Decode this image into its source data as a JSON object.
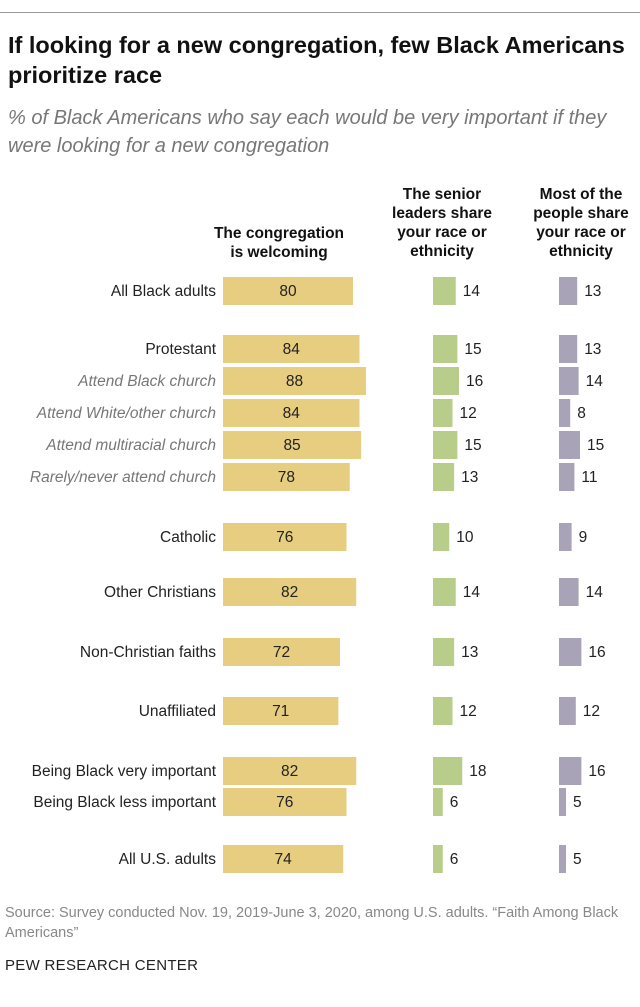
{
  "title": "If looking for a new congregation, few Black Americans prioritize race",
  "subtitle": "% of Black Americans who say each would be very important if they were looking for a new congregation",
  "colors": {
    "welcoming": "#e6cd7f",
    "leaders": "#b8cd89",
    "people": "#a8a3b6"
  },
  "chart_data": {
    "type": "bar",
    "orientation": "horizontal",
    "categories": [
      "All Black adults",
      "Protestant",
      "Attend Black church",
      "Attend White/other church",
      "Attend multiracial church",
      "Rarely/never attend church",
      "Catholic",
      "Other Christians",
      "Non-Christian faiths",
      "Unaffiliated",
      "Being Black very important",
      "Being Black less important",
      "All U.S. adults"
    ],
    "subgroup_flags": [
      false,
      false,
      true,
      true,
      true,
      true,
      false,
      false,
      false,
      false,
      false,
      false,
      false
    ],
    "series": [
      {
        "name": "The congregation is welcoming",
        "values": [
          80,
          84,
          88,
          84,
          85,
          78,
          76,
          82,
          72,
          71,
          82,
          76,
          74
        ]
      },
      {
        "name": "The senior leaders share your race or ethnicity",
        "values": [
          14,
          15,
          16,
          12,
          15,
          13,
          10,
          14,
          13,
          12,
          18,
          6,
          6
        ]
      },
      {
        "name": "Most of the people share your race or ethnicity",
        "values": [
          13,
          13,
          14,
          8,
          15,
          11,
          9,
          14,
          16,
          12,
          16,
          5,
          5
        ]
      }
    ],
    "unit": "%"
  },
  "source": "Source: Survey conducted Nov. 19, 2019-June 3, 2020, among U.S. adults. “Faith Among Black Americans”",
  "brand": "PEW RESEARCH CENTER"
}
